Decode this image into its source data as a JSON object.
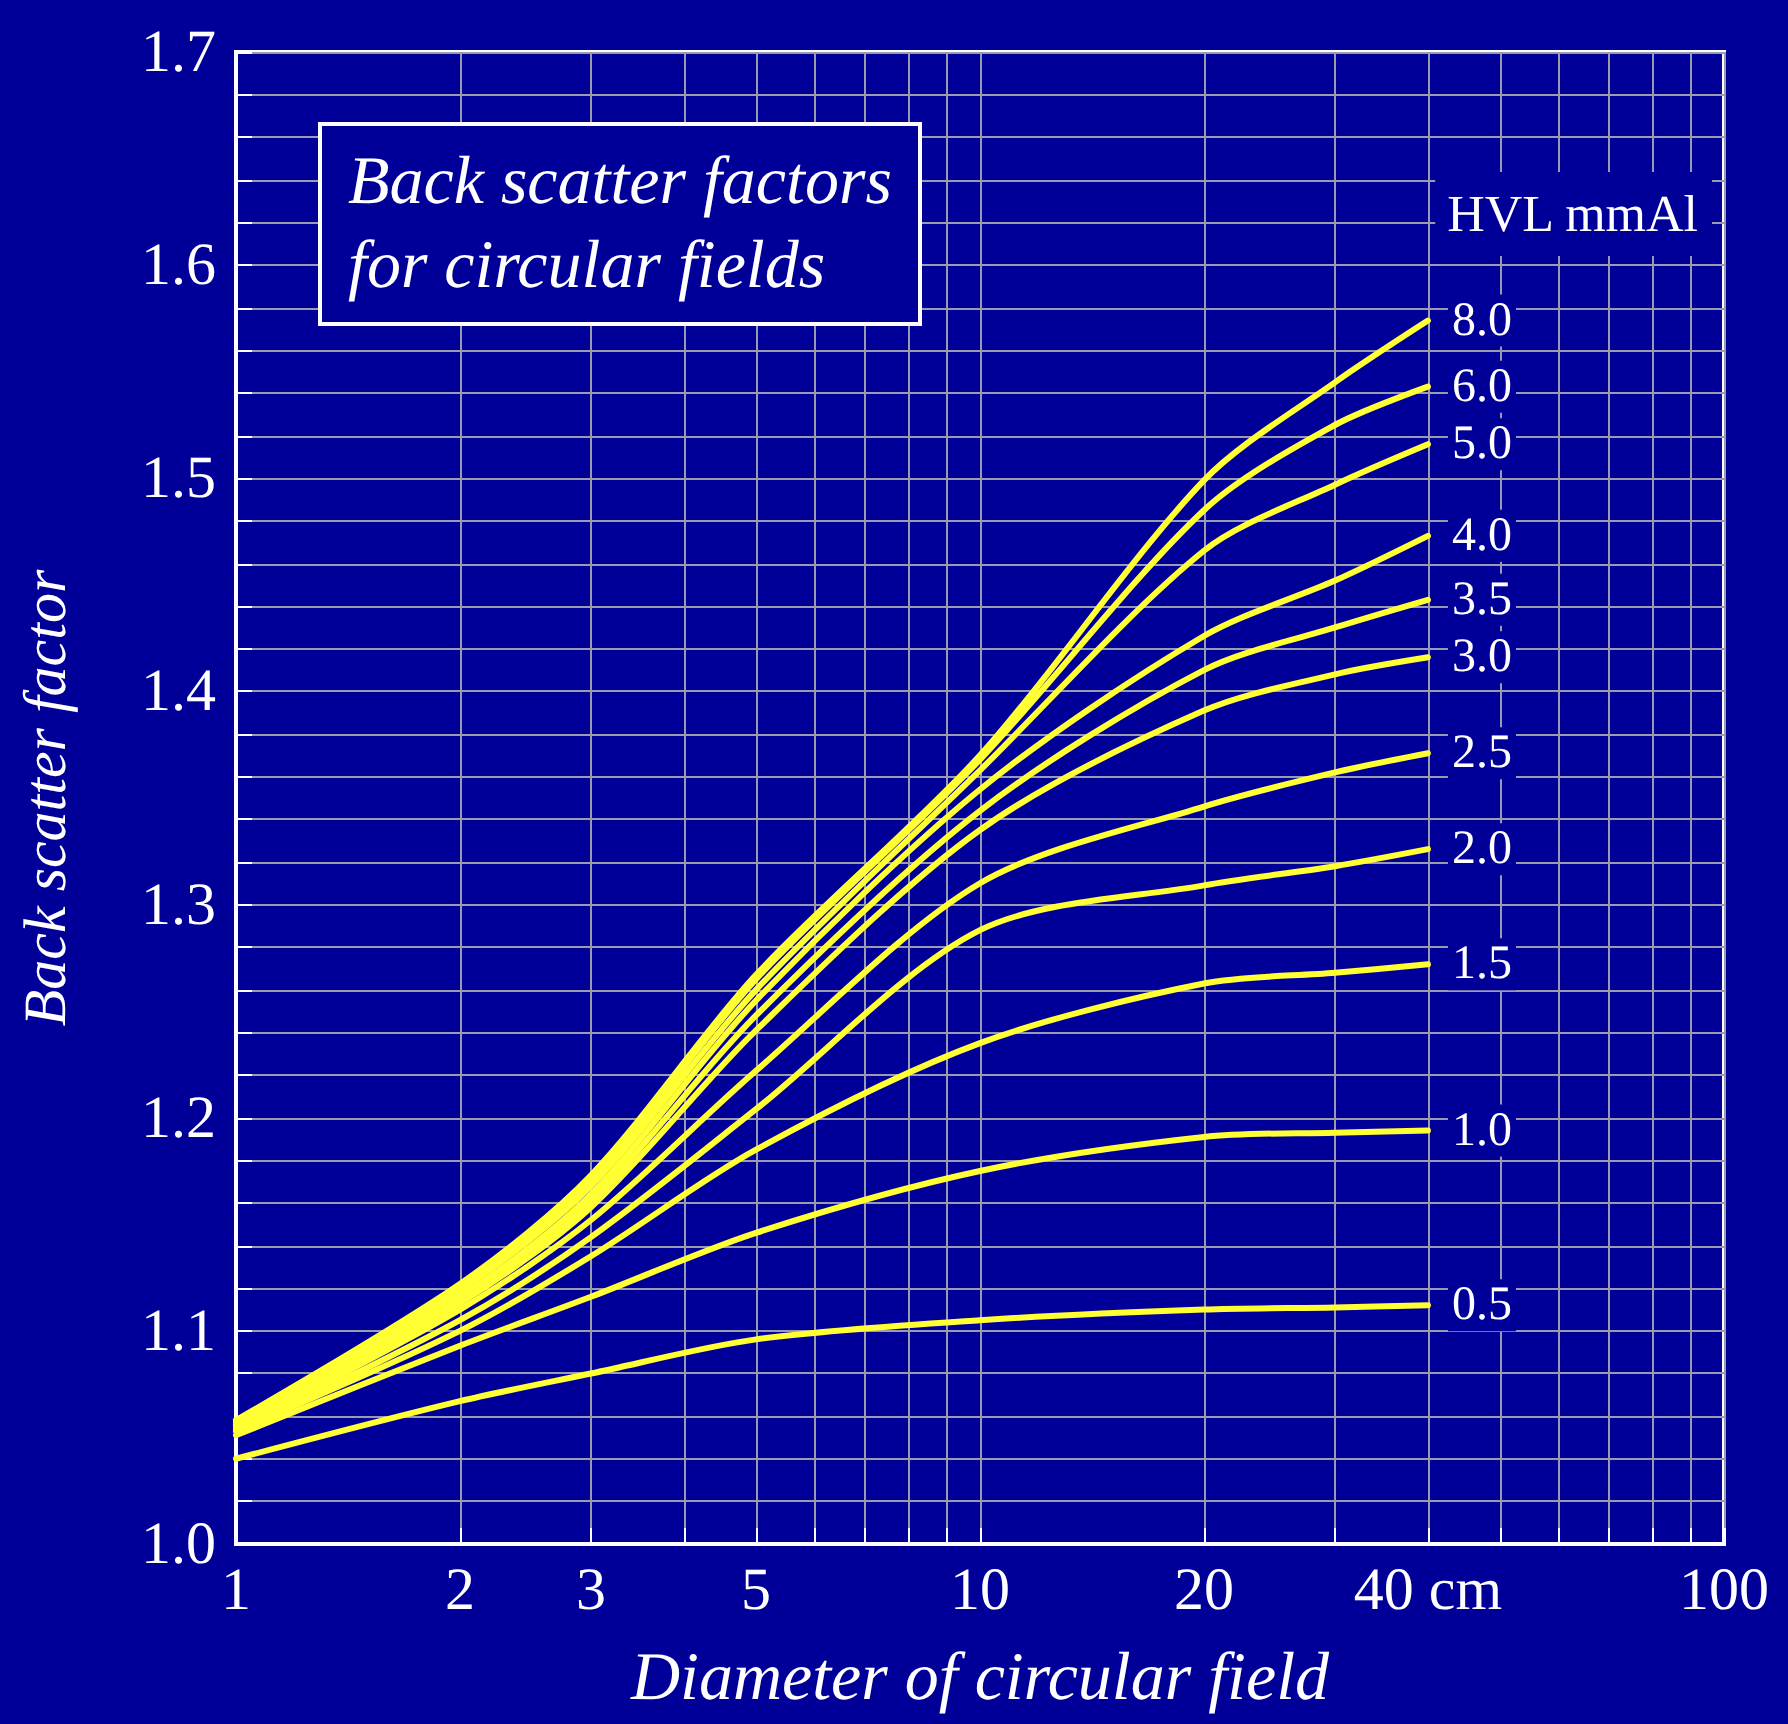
{
  "chart_data": {
    "type": "line",
    "title": "Back scatter factors\nfor circular fields",
    "xlabel": "Diameter of circular field",
    "ylabel": "Back scatter factor",
    "legend_title": "HVL mmAl",
    "log": "x",
    "grid": true,
    "legend": false,
    "marker": "none",
    "line_style": "solid",
    "x": [
      1,
      2,
      3,
      5,
      10,
      20,
      30,
      40
    ],
    "xlim": [
      1,
      100
    ],
    "xticks": [
      1,
      2,
      3,
      {
        "value": 4,
        "label": null
      },
      5,
      {
        "value": 6,
        "label": null
      },
      {
        "value": 7,
        "label": null
      },
      {
        "value": 8,
        "label": null
      },
      {
        "value": 9,
        "label": null
      },
      10,
      20,
      {
        "value": 30,
        "label": null
      },
      {
        "value": 40,
        "label": "40 cm"
      },
      {
        "value": 50,
        "label": null
      },
      {
        "value": 60,
        "label": null
      },
      {
        "value": 70,
        "label": null
      },
      {
        "value": 80,
        "label": null
      },
      {
        "value": 90,
        "label": null
      },
      100
    ],
    "ylim": [
      1.0,
      1.7
    ],
    "yticks": [
      {
        "value": 1.0,
        "label": "1.0"
      },
      {
        "value": 1.02,
        "label": null
      },
      {
        "value": 1.04,
        "label": null
      },
      {
        "value": 1.06,
        "label": null
      },
      {
        "value": 1.08,
        "label": null
      },
      1.1,
      {
        "value": 1.12,
        "label": null
      },
      {
        "value": 1.14,
        "label": null
      },
      {
        "value": 1.16,
        "label": null
      },
      {
        "value": 1.18,
        "label": null
      },
      1.2,
      {
        "value": 1.22,
        "label": null
      },
      {
        "value": 1.24,
        "label": null
      },
      {
        "value": 1.26,
        "label": null
      },
      {
        "value": 1.28,
        "label": null
      },
      1.3,
      {
        "value": 1.32,
        "label": null
      },
      {
        "value": 1.34,
        "label": null
      },
      {
        "value": 1.36,
        "label": null
      },
      {
        "value": 1.38,
        "label": null
      },
      1.4,
      {
        "value": 1.42,
        "label": null
      },
      {
        "value": 1.44,
        "label": null
      },
      {
        "value": 1.46,
        "label": null
      },
      {
        "value": 1.48,
        "label": null
      },
      1.5,
      {
        "value": 1.52,
        "label": null
      },
      {
        "value": 1.54,
        "label": null
      },
      {
        "value": 1.56,
        "label": null
      },
      {
        "value": 1.58,
        "label": null
      },
      1.6,
      {
        "value": 1.62,
        "label": null
      },
      {
        "value": 1.64,
        "label": null
      },
      {
        "value": 1.66,
        "label": null
      },
      {
        "value": 1.68,
        "label": null
      },
      1.7
    ],
    "series": [
      {
        "name": "8.0",
        "color": "#ffff33",
        "values": [
          1.058,
          1.122,
          1.173,
          1.267,
          1.37,
          1.499,
          1.545,
          1.574
        ]
      },
      {
        "name": "6.0",
        "color": "#ffff33",
        "values": [
          1.058,
          1.121,
          1.171,
          1.265,
          1.368,
          1.485,
          1.525,
          1.543
        ]
      },
      {
        "name": "5.0",
        "color": "#ffff33",
        "values": [
          1.057,
          1.119,
          1.168,
          1.26,
          1.363,
          1.466,
          1.497,
          1.516
        ]
      },
      {
        "name": "4.0",
        "color": "#ffff33",
        "values": [
          1.056,
          1.116,
          1.164,
          1.255,
          1.354,
          1.426,
          1.452,
          1.473
        ]
      },
      {
        "name": "3.5",
        "color": "#ffff33",
        "values": [
          1.056,
          1.114,
          1.161,
          1.248,
          1.344,
          1.41,
          1.43,
          1.443
        ]
      },
      {
        "name": "3.0",
        "color": "#ffff33",
        "values": [
          1.055,
          1.113,
          1.158,
          1.241,
          1.335,
          1.391,
          1.408,
          1.416
        ]
      },
      {
        "name": "2.5",
        "color": "#ffff33",
        "values": [
          1.054,
          1.11,
          1.152,
          1.222,
          1.31,
          1.346,
          1.362,
          1.371
        ]
      },
      {
        "name": "2.0",
        "color": "#ffff33",
        "values": [
          1.053,
          1.105,
          1.144,
          1.204,
          1.288,
          1.309,
          1.318,
          1.326
        ]
      },
      {
        "name": "1.5",
        "color": "#ffff33",
        "values": [
          1.053,
          1.1,
          1.135,
          1.185,
          1.235,
          1.263,
          1.268,
          1.272
        ]
      },
      {
        "name": "1.0",
        "color": "#ffff33",
        "values": [
          1.051,
          1.093,
          1.116,
          1.146,
          1.175,
          1.191,
          1.193,
          1.194
        ]
      },
      {
        "name": "0.5",
        "color": "#ffff33",
        "values": [
          1.04,
          1.067,
          1.08,
          1.096,
          1.105,
          1.11,
          1.111,
          1.112
        ]
      }
    ]
  }
}
